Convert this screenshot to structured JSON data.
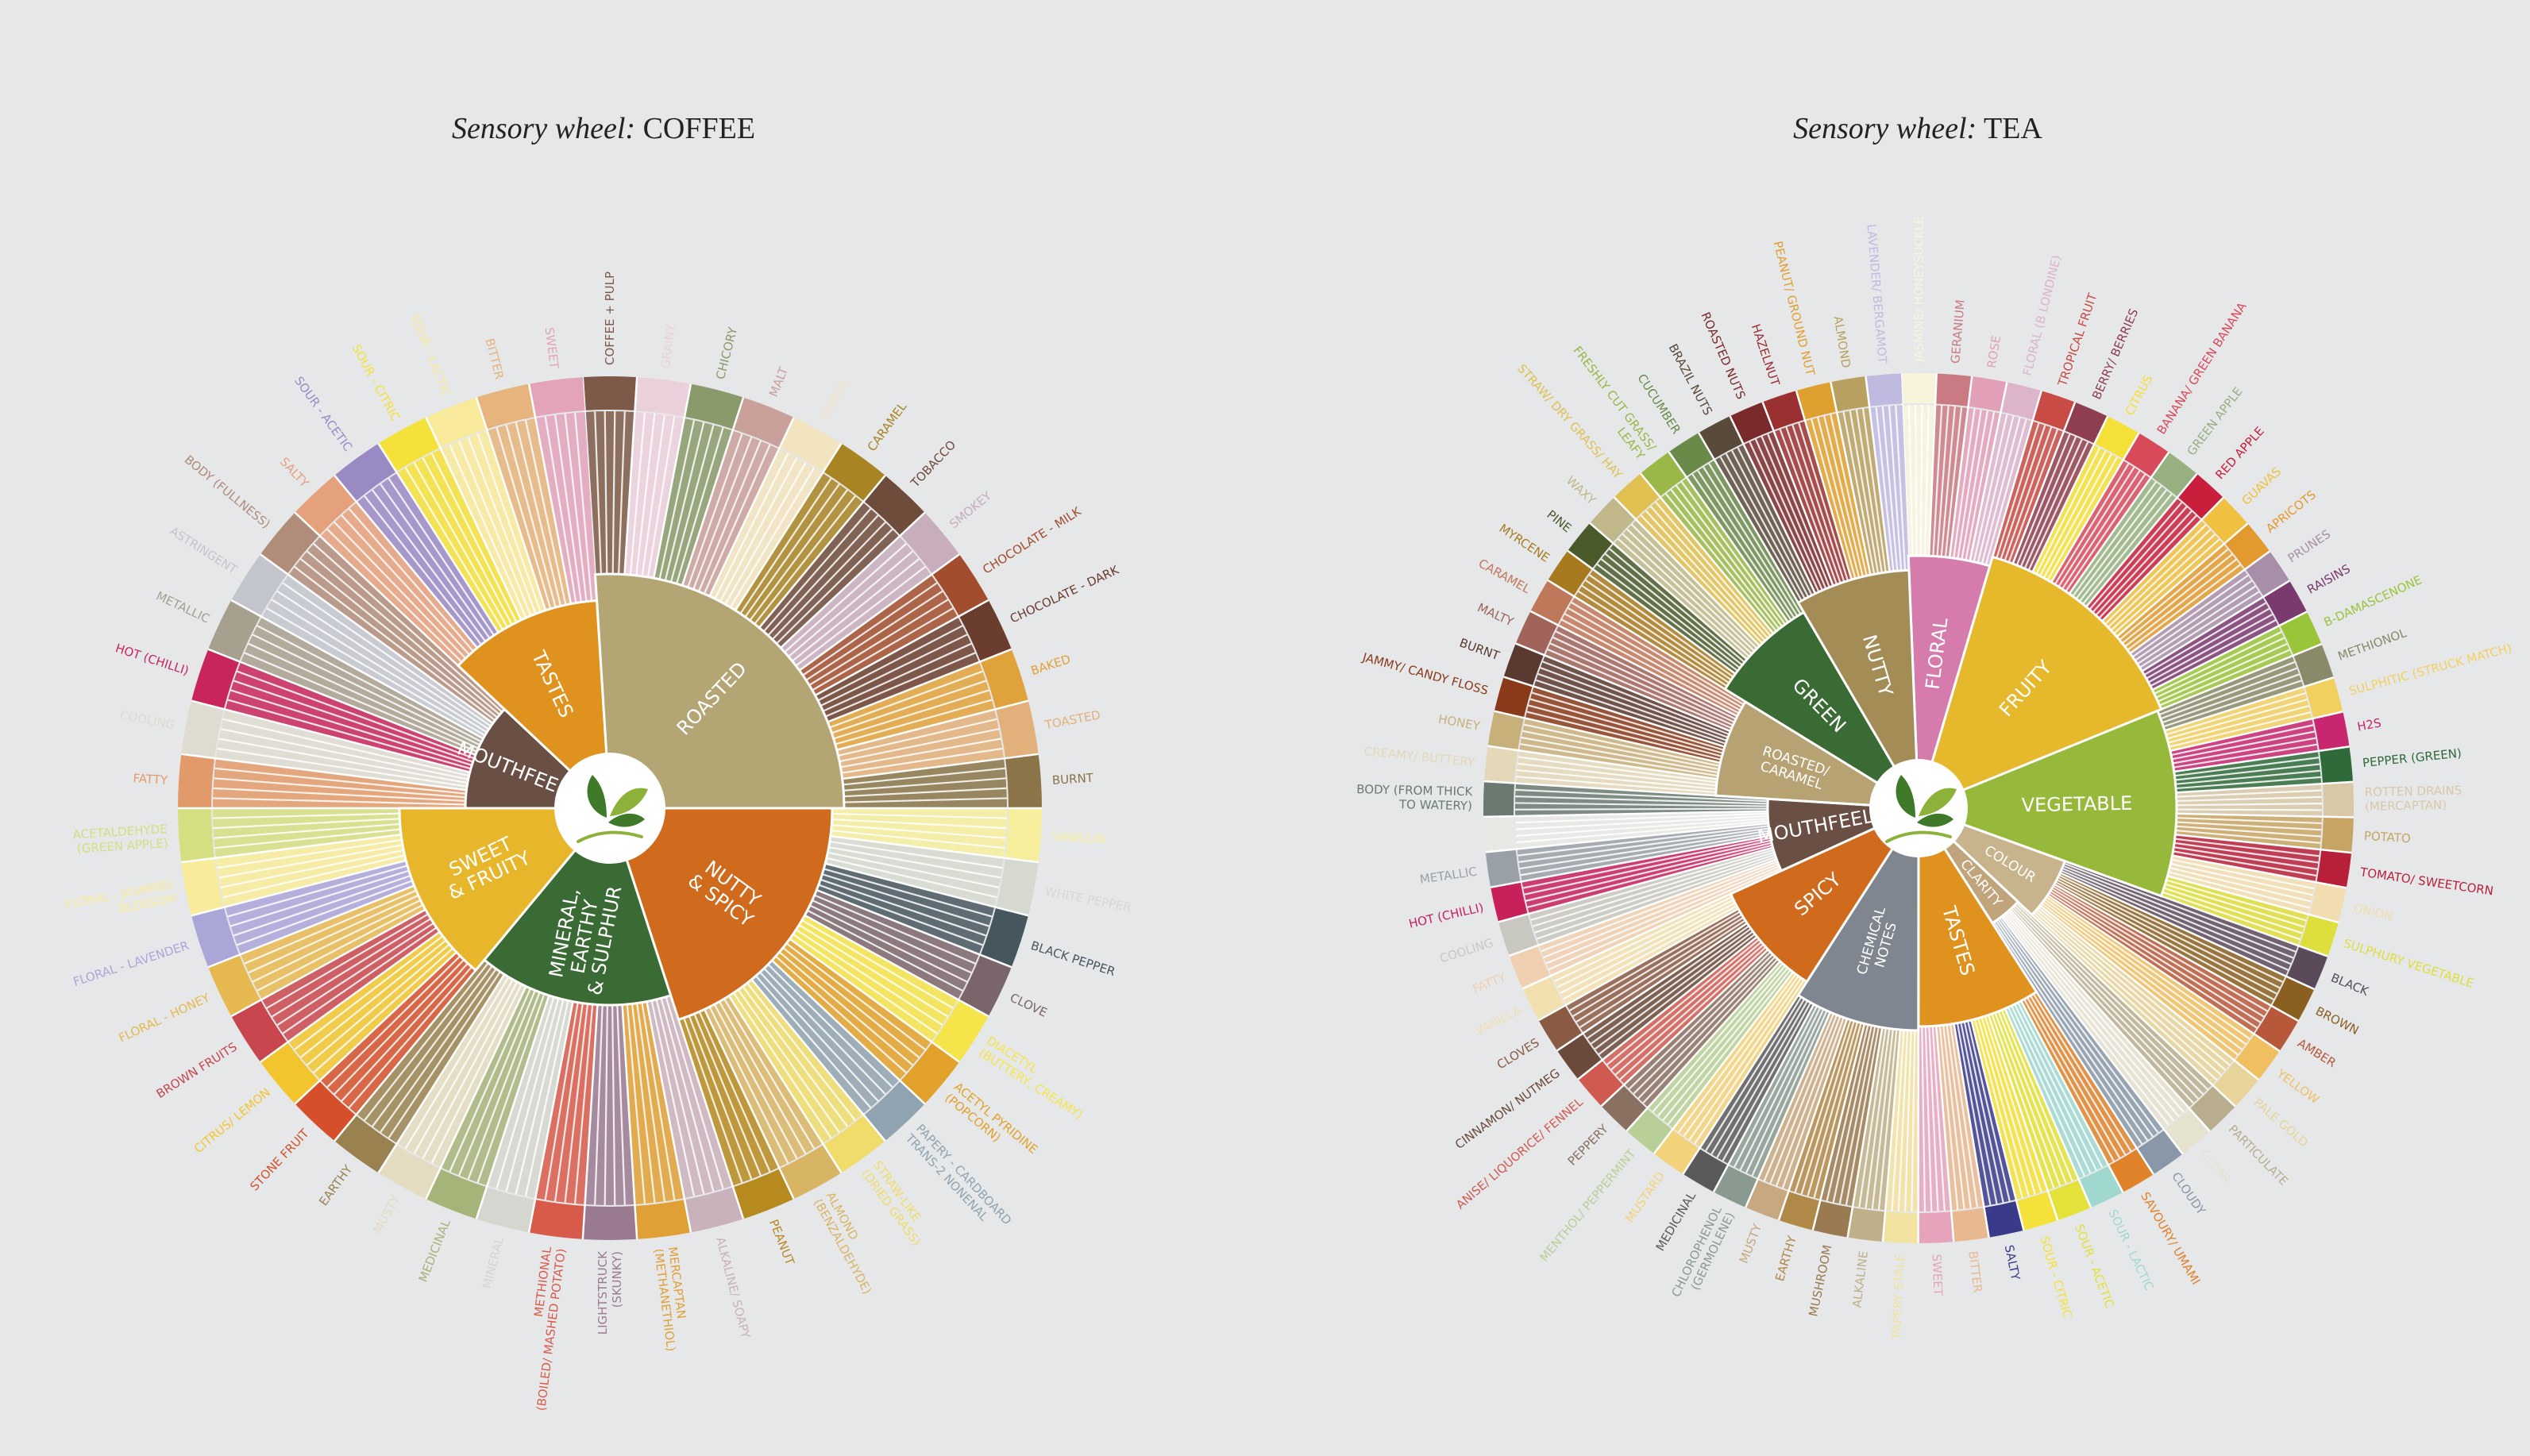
{
  "coffee": {
    "title_prefix": "Sensory wheel:",
    "title_main": "COFFEE",
    "core": [
      {
        "label": "ROASTED",
        "color": "#b3a574"
      },
      {
        "label": "NUTTY\n& SPICY",
        "color": "#d06a1c"
      },
      {
        "label": "MINERAL,\nEARTHY\n& SULPHUR",
        "color": "#3b6b34"
      },
      {
        "label": "SWEET\n& FRUITY",
        "color": "#e7b62b"
      },
      {
        "label": "MOUTHFEEL",
        "color": "#6a4f45"
      },
      {
        "label": "TASTES",
        "color": "#e0921f"
      }
    ],
    "descriptors": [
      {
        "label": "COFFEE + PULP",
        "color": "#7d5948",
        "group": 0
      },
      {
        "label": "GRAINY",
        "color": "#ebd0dc",
        "group": 0
      },
      {
        "label": "CHICORY",
        "color": "#8a9a6a",
        "group": 0
      },
      {
        "label": "MALT",
        "color": "#c9a09a",
        "group": 0
      },
      {
        "label": "CEREAL",
        "color": "#f2e4bf",
        "group": 0
      },
      {
        "label": "CARAMEL",
        "color": "#a88423",
        "group": 0
      },
      {
        "label": "TOBACCO",
        "color": "#6e4b3b",
        "group": 0
      },
      {
        "label": "SMOKEY",
        "color": "#c8adbd",
        "group": 0
      },
      {
        "label": "CHOCOLATE - MILK",
        "color": "#a24e2e",
        "group": 0
      },
      {
        "label": "CHOCOLATE - DARK",
        "color": "#6b3d2f",
        "group": 0
      },
      {
        "label": "BAKED",
        "color": "#e0a23a",
        "group": 0
      },
      {
        "label": "TOASTED",
        "color": "#e2b07a",
        "group": 0
      },
      {
        "label": "BURNT",
        "color": "#8a7448",
        "group": 0
      },
      {
        "label": "VANILLIN",
        "color": "#f6ee9c",
        "group": 1
      },
      {
        "label": "WHITE PEPPER",
        "color": "#d6d9cf",
        "group": 1
      },
      {
        "label": "BLACK PEPPER",
        "color": "#46565f",
        "group": 1
      },
      {
        "label": "CLOVE",
        "color": "#7a656a",
        "group": 1
      },
      {
        "label": "DIACETYL\n(BUTTERY, CREAMY)",
        "color": "#f5e44a",
        "group": 1
      },
      {
        "label": "ACETYL PYRIDINE\n(POPCORN)",
        "color": "#e2a12a",
        "group": 1
      },
      {
        "label": "PAPERY - CARDBOARD\nTRANS-2 NONENAL",
        "color": "#8fa3b0",
        "group": 1
      },
      {
        "label": "STRAW-LIKE\n(DRIED GRASS)",
        "color": "#f0dc6a",
        "group": 1
      },
      {
        "label": "ALMOND\n(BENZALDEHYDE)",
        "color": "#d8b565",
        "group": 1
      },
      {
        "label": "PEANUT",
        "color": "#b68a1e",
        "group": 1
      },
      {
        "label": "ALKALINE/ SOAPY",
        "color": "#cab2bd",
        "group": 2
      },
      {
        "label": "MERCAPTAN\n(METHANETHIOL)",
        "color": "#e0a035",
        "group": 2
      },
      {
        "label": "LIGHTSTRUCK\n(SKUNKY)",
        "color": "#9a7a90",
        "group": 2
      },
      {
        "label": "METHIONAL\n(BOILED/ MASHED POTATO)",
        "color": "#d85a4a",
        "group": 2
      },
      {
        "label": "MINERAL",
        "color": "#d6d6d0",
        "group": 2
      },
      {
        "label": "MEDICINAL",
        "color": "#a6b47a",
        "group": 2
      },
      {
        "label": "MUSTY",
        "color": "#e4dcc0",
        "group": 2
      },
      {
        "label": "EARTHY",
        "color": "#9a8250",
        "group": 2
      },
      {
        "label": "STONE FRUIT",
        "color": "#d5502a",
        "group": 3
      },
      {
        "label": "CITRUS/ LEMON",
        "color": "#f2c52e",
        "group": 3
      },
      {
        "label": "BROWN FRUITS",
        "color": "#c8464e",
        "group": 3
      },
      {
        "label": "FLORAL - HONEY",
        "color": "#e6b850",
        "group": 3
      },
      {
        "label": "FLORAL - LAVENDER",
        "color": "#aaa6d8",
        "group": 3
      },
      {
        "label": "FLORAL - JASMINE/\nBLOSSOM",
        "color": "#f8ec9a",
        "group": 3
      },
      {
        "label": "ACETALDEHYDE\n(GREEN APPLE)",
        "color": "#d6de82",
        "group": 3
      },
      {
        "label": "FATTY",
        "color": "#e39a6a",
        "group": 4
      },
      {
        "label": "COOLING",
        "color": "#dedbd0",
        "group": 4
      },
      {
        "label": "HOT (CHILLI)",
        "color": "#c8265a",
        "group": 4
      },
      {
        "label": "METALLIC",
        "color": "#a8a08e",
        "group": 4
      },
      {
        "label": "ASTRINGENT",
        "color": "#c2c6cc",
        "group": 4
      },
      {
        "label": "BODY (FULLNESS)",
        "color": "#b08c7a",
        "group": 4
      },
      {
        "label": "SALTY",
        "color": "#e5a07c",
        "group": 5
      },
      {
        "label": "SOUR - ACETIC",
        "color": "#9a8ac4",
        "group": 5
      },
      {
        "label": "SOUR - CITRIC",
        "color": "#f4e23a",
        "group": 5
      },
      {
        "label": "SOUR - LACTIC",
        "color": "#f8ea9a",
        "group": 5
      },
      {
        "label": "BITTER",
        "color": "#e6b47c",
        "group": 5
      },
      {
        "label": "SWEET",
        "color": "#e2a3bb",
        "group": 5
      }
    ]
  },
  "tea": {
    "title_prefix": "Sensory wheel:",
    "title_main": "TEA",
    "core": [
      {
        "label": "FLORAL",
        "color": "#d57cad"
      },
      {
        "label": "FRUITY",
        "color": "#e6b82c"
      },
      {
        "label": "VEGETABLE",
        "color": "#97b93b"
      },
      {
        "label": "COLOUR",
        "color": "#c8b48c"
      },
      {
        "label": "CLARITY",
        "color": "#c0a47c"
      },
      {
        "label": "TASTES",
        "color": "#e0921f"
      },
      {
        "label": "CHEMICAL\nNOTES",
        "color": "#7f8690"
      },
      {
        "label": "SPICY",
        "color": "#d06a1c"
      },
      {
        "label": "MOUTHFEEL",
        "color": "#6a4f45"
      },
      {
        "label": "ROASTED/\nCARAMEL",
        "color": "#b6a272"
      },
      {
        "label": "GREEN",
        "color": "#3b6b34"
      },
      {
        "label": "NUTTY",
        "color": "#a48c56"
      }
    ],
    "descriptors": [
      {
        "label": "JASMINE/ HONEYSUCKLE",
        "color": "#f8f4dc",
        "group": 0
      },
      {
        "label": "GERANIUM",
        "color": "#c97a82",
        "group": 0
      },
      {
        "label": "ROSE",
        "color": "#e2a0b8",
        "group": 0
      },
      {
        "label": "FLORAL (B LONDINE)",
        "color": "#dcb4cc",
        "group": 0
      },
      {
        "label": "TROPICAL FRUIT",
        "color": "#c84b44",
        "group": 1
      },
      {
        "label": "BERRY/ BERRIES",
        "color": "#8e3e4e",
        "group": 1
      },
      {
        "label": "CITRUS",
        "color": "#f5e038",
        "group": 1
      },
      {
        "label": "BANANA/ GREEN BANANA",
        "color": "#d84a5a",
        "group": 1
      },
      {
        "label": "GREEN APPLE",
        "color": "#96b080",
        "group": 1
      },
      {
        "label": "RED APPLE",
        "color": "#c8203c",
        "group": 1
      },
      {
        "label": "GUAVAS",
        "color": "#f0c040",
        "group": 1
      },
      {
        "label": "APRICOTS",
        "color": "#e29a2e",
        "group": 1
      },
      {
        "label": "PRUNES",
        "color": "#a88fa8",
        "group": 1
      },
      {
        "label": "RAISINS",
        "color": "#7a3a6e",
        "group": 1
      },
      {
        "label": "B-DAMASCENONE",
        "color": "#9ac43a",
        "group": 1
      },
      {
        "label": "METHIONOL",
        "color": "#8a8a6a",
        "group": 2
      },
      {
        "label": "SULPHITIC (STRUCK MATCH)",
        "color": "#f2d060",
        "group": 2
      },
      {
        "label": "H2S",
        "color": "#c8266e",
        "group": 2
      },
      {
        "label": "PEPPER (GREEN)",
        "color": "#2e6a3a",
        "group": 2
      },
      {
        "label": "ROTTEN DRAINS\n(MERCAPTAN)",
        "color": "#d8c8a8",
        "group": 2
      },
      {
        "label": "POTATO",
        "color": "#c8a464",
        "group": 2
      },
      {
        "label": "TOMATO/ SWEETCORN",
        "color": "#b8203a",
        "group": 2
      },
      {
        "label": "ONION",
        "color": "#f2ddb0",
        "group": 2
      },
      {
        "label": "SULPHURY VEGETABLE",
        "color": "#dede3c",
        "group": 2
      },
      {
        "label": "BLACK",
        "color": "#5a4a5a",
        "group": 3
      },
      {
        "label": "BROWN",
        "color": "#8a6020",
        "group": 3
      },
      {
        "label": "AMBER",
        "color": "#b8583a",
        "group": 3
      },
      {
        "label": "YELLOW",
        "color": "#f0c060",
        "group": 3
      },
      {
        "label": "PALE GOLD",
        "color": "#e6d49a",
        "group": 3
      },
      {
        "label": "PARTICULATE",
        "color": "#b8ae8e",
        "group": 4
      },
      {
        "label": "CLEAR",
        "color": "#e6e2d0",
        "group": 4
      },
      {
        "label": "CLOUDY",
        "color": "#8898a8",
        "group": 4
      },
      {
        "label": "SAVOURY/ UMAMI",
        "color": "#e0822a",
        "group": 5
      },
      {
        "label": "SOUR - LACTIC",
        "color": "#a0d8d0",
        "group": 5
      },
      {
        "label": "SOUR - ACETIC",
        "color": "#e2e23a",
        "group": 5
      },
      {
        "label": "SOUR - CITRIC",
        "color": "#f4e23a",
        "group": 5
      },
      {
        "label": "SALTY",
        "color": "#3a3a8a",
        "group": 5
      },
      {
        "label": "BITTER",
        "color": "#e8b890",
        "group": 5
      },
      {
        "label": "SWEET",
        "color": "#e6a4bc",
        "group": 5
      },
      {
        "label": "PAPERY STALE",
        "color": "#f2e2a0",
        "group": 6
      },
      {
        "label": "ALKALINE",
        "color": "#c0b08a",
        "group": 6
      },
      {
        "label": "MUSHROOM",
        "color": "#9a7a50",
        "group": 6
      },
      {
        "label": "EARTHY",
        "color": "#b08848",
        "group": 6
      },
      {
        "label": "MUSTY",
        "color": "#c8a880",
        "group": 6
      },
      {
        "label": "CHLOROPHENOL\n(GERMOLENE)",
        "color": "#8a9a90",
        "group": 6
      },
      {
        "label": "MEDICINAL",
        "color": "#5a5a5a",
        "group": 6
      },
      {
        "label": "MUSTARD",
        "color": "#f2d27a",
        "group": 7
      },
      {
        "label": "MENTHOL/ PEPPERMINT",
        "color": "#b8d098",
        "group": 7
      },
      {
        "label": "PEPPERY",
        "color": "#8a7060",
        "group": 7
      },
      {
        "label": "ANISE/ LIQUORICE/ FENNEL",
        "color": "#d05a50",
        "group": 7
      },
      {
        "label": "CINNAMON/ NUTMEG",
        "color": "#6a4a3a",
        "group": 7
      },
      {
        "label": "CLOVES",
        "color": "#8a5a44",
        "group": 7
      },
      {
        "label": "VANILLA",
        "color": "#f2e0b0",
        "group": 7
      },
      {
        "label": "FATTY",
        "color": "#f0d0b0",
        "group": 8
      },
      {
        "label": "COOLING",
        "color": "#c8c8c0",
        "group": 8
      },
      {
        "label": "HOT (CHILLI)",
        "color": "#c8205a",
        "group": 8
      },
      {
        "label": "METALLIC",
        "color": "#9aa0a8",
        "group": 8
      },
      {
        "label": "ASTRINGENT",
        "color": "#e8e8e4",
        "group": 8
      },
      {
        "label": "BODY (FROM THICK\nTO WATERY)",
        "color": "#6a7a70",
        "group": 8
      },
      {
        "label": "CREAMY/ BUTTERY",
        "color": "#e4d8b8",
        "group": 9
      },
      {
        "label": "HONEY",
        "color": "#c8b07a",
        "group": 9
      },
      {
        "label": "JAMMY/ CANDY FLOSS",
        "color": "#8a3a1a",
        "group": 9
      },
      {
        "label": "BURNT",
        "color": "#5a3a30",
        "group": 9
      },
      {
        "label": "MALTY",
        "color": "#a0645a",
        "group": 9
      },
      {
        "label": "CARAMEL",
        "color": "#c0785a",
        "group": 9
      },
      {
        "label": "MYRCENE",
        "color": "#a87a20",
        "group": 10
      },
      {
        "label": "PINE",
        "color": "#4a5a2a",
        "group": 10
      },
      {
        "label": "WAXY",
        "color": "#c0b88a",
        "group": 10
      },
      {
        "label": "STRAW/ DRY GRASS/ HAY",
        "color": "#e0c050",
        "group": 10
      },
      {
        "label": "FRESHLY CUT GRASS/\nLEAFY",
        "color": "#9ab848",
        "group": 10
      },
      {
        "label": "CUCUMBER",
        "color": "#6a8a4a",
        "group": 10
      },
      {
        "label": "BRAZIL NUTS",
        "color": "#5a4a3a",
        "group": 11
      },
      {
        "label": "ROASTED NUTS",
        "color": "#7a2a2a",
        "group": 11
      },
      {
        "label": "HAZELNUT",
        "color": "#9a3030",
        "group": 11
      },
      {
        "label": "PEANUT/ GROUND NUT",
        "color": "#e0a030",
        "group": 11
      },
      {
        "label": "ALMOND",
        "color": "#b8a060",
        "group": 11
      },
      {
        "label": "LAVENDER/ BERGAMOT",
        "color": "#c0bae0",
        "group": 11
      }
    ]
  }
}
